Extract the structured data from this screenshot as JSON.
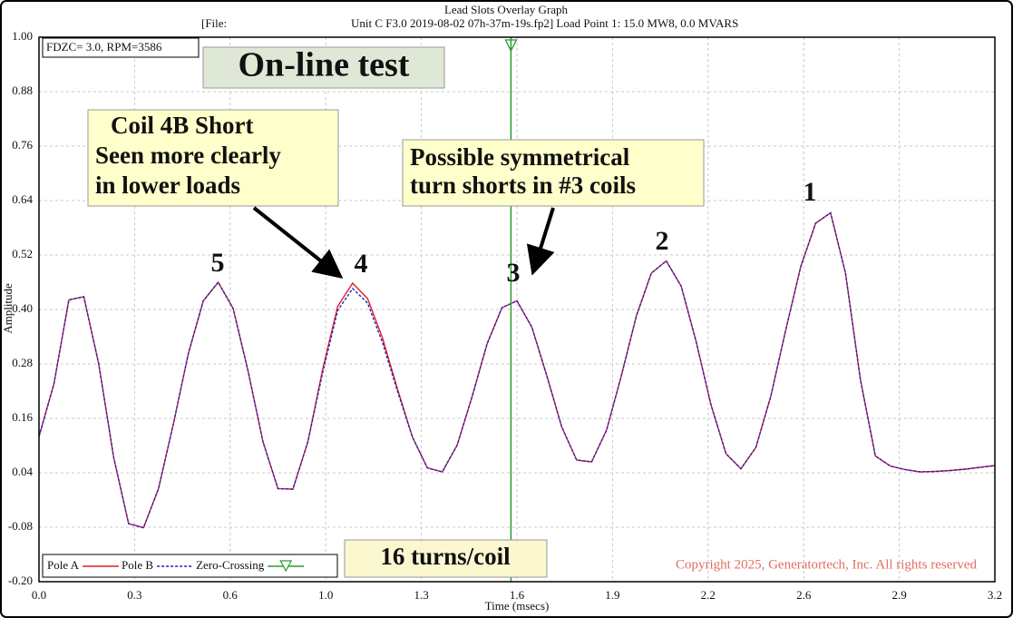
{
  "chart_data": {
    "type": "line",
    "title": "Lead Slots Overlay Graph",
    "file_label": "[File:",
    "subtitle": "Unit C F3.0 2019-08-02 07h-37m-19s.fp2]  Load Point 1:  15.0 MW8,   0.0 MVARS",
    "x_label": "Time (msecs)",
    "y_label": "Amplitude",
    "info": "FDZC= 3.0, RPM=3586",
    "test_label": "On-line test",
    "coil_note": [
      "Coil 4B Short",
      "Seen more clearly",
      "in lower loads"
    ],
    "sym_note": [
      "Possible symmetrical",
      "turn shorts in #3 coils"
    ],
    "peak_labels": [
      "5",
      "4",
      "3",
      "2",
      "1"
    ],
    "turns_note": "16 turns/coil",
    "copyright": "Copyright 2025, Generatortech, Inc. All rights reserved",
    "xlim": [
      0,
      3.2
    ],
    "ylim": [
      -0.2,
      1.0
    ],
    "xticks": [
      {
        "value": 0,
        "label": "0.0"
      },
      {
        "value": 0.32,
        "label": "0.3"
      },
      {
        "value": 0.64,
        "label": "0.6"
      },
      {
        "value": 0.96,
        "label": "1.0"
      },
      {
        "value": 1.28,
        "label": "1.3"
      },
      1.6,
      {
        "value": 1.92,
        "label": "1.9"
      },
      {
        "value": 2.24,
        "label": "2.2"
      },
      {
        "value": 2.56,
        "label": "2.6"
      },
      {
        "value": 2.88,
        "label": "2.9"
      },
      3.2
    ],
    "yticks": [
      {
        "value": -0.2,
        "label": "-0.20"
      },
      -0.08,
      0.04,
      0.16,
      0.28,
      {
        "value": 0.4,
        "label": "0.40"
      },
      0.52,
      0.64,
      0.76,
      0.88,
      {
        "value": 1.0,
        "label": "1.00"
      }
    ],
    "grid": true,
    "x": [
      0,
      0.05,
      0.1,
      0.15,
      0.2,
      0.25,
      0.3,
      0.35,
      0.4,
      0.45,
      0.5,
      0.55,
      0.6,
      0.65,
      0.7,
      0.75,
      0.8,
      0.85,
      0.9,
      0.95,
      1.0,
      1.05,
      1.1,
      1.15,
      1.2,
      1.25,
      1.3,
      1.35,
      1.4,
      1.45,
      1.5,
      1.55,
      1.6,
      1.65,
      1.7,
      1.75,
      1.8,
      1.85,
      1.9,
      1.95,
      2.0,
      2.05,
      2.1,
      2.15,
      2.2,
      2.25,
      2.3,
      2.35,
      2.4,
      2.45,
      2.5,
      2.55,
      2.6,
      2.65,
      2.7,
      2.75,
      2.8,
      2.85,
      2.9,
      2.95,
      3.0,
      3.05,
      3.1,
      3.15,
      3.2
    ],
    "series": [
      {
        "name": "Pole A",
        "color": "#e02020",
        "dash": false,
        "values": [
          0.12,
          0.236,
          0.421,
          0.428,
          0.28,
          0.074,
          -0.072,
          -0.081,
          0.005,
          0.148,
          0.303,
          0.419,
          0.46,
          0.402,
          0.264,
          0.108,
          0.005,
          0.004,
          0.108,
          0.269,
          0.407,
          0.458,
          0.424,
          0.337,
          0.225,
          0.119,
          0.051,
          0.042,
          0.101,
          0.208,
          0.324,
          0.404,
          0.419,
          0.361,
          0.254,
          0.141,
          0.068,
          0.064,
          0.134,
          0.255,
          0.386,
          0.48,
          0.507,
          0.451,
          0.329,
          0.189,
          0.082,
          0.049,
          0.096,
          0.209,
          0.355,
          0.494,
          0.59,
          0.613,
          0.48,
          0.245,
          0.077,
          0.055,
          0.047,
          0.042,
          0.043,
          0.045,
          0.048,
          0.052,
          0.056
        ]
      },
      {
        "name": "Pole B",
        "color": "#2020c0",
        "dash": true,
        "values": [
          0.12,
          0.236,
          0.421,
          0.428,
          0.28,
          0.074,
          -0.072,
          -0.081,
          0.005,
          0.148,
          0.303,
          0.419,
          0.46,
          0.402,
          0.264,
          0.108,
          0.005,
          0.004,
          0.108,
          0.262,
          0.398,
          0.446,
          0.414,
          0.327,
          0.22,
          0.119,
          0.051,
          0.042,
          0.101,
          0.208,
          0.324,
          0.404,
          0.419,
          0.361,
          0.254,
          0.141,
          0.068,
          0.064,
          0.134,
          0.255,
          0.386,
          0.48,
          0.507,
          0.451,
          0.329,
          0.189,
          0.082,
          0.049,
          0.096,
          0.209,
          0.355,
          0.494,
          0.59,
          0.613,
          0.48,
          0.245,
          0.077,
          0.055,
          0.047,
          0.042,
          0.043,
          0.045,
          0.048,
          0.052,
          0.056
        ]
      }
    ],
    "zero_crossing": {
      "name": "Zero-Crossing",
      "x": 1.58,
      "color": "#2e9a2e"
    }
  }
}
